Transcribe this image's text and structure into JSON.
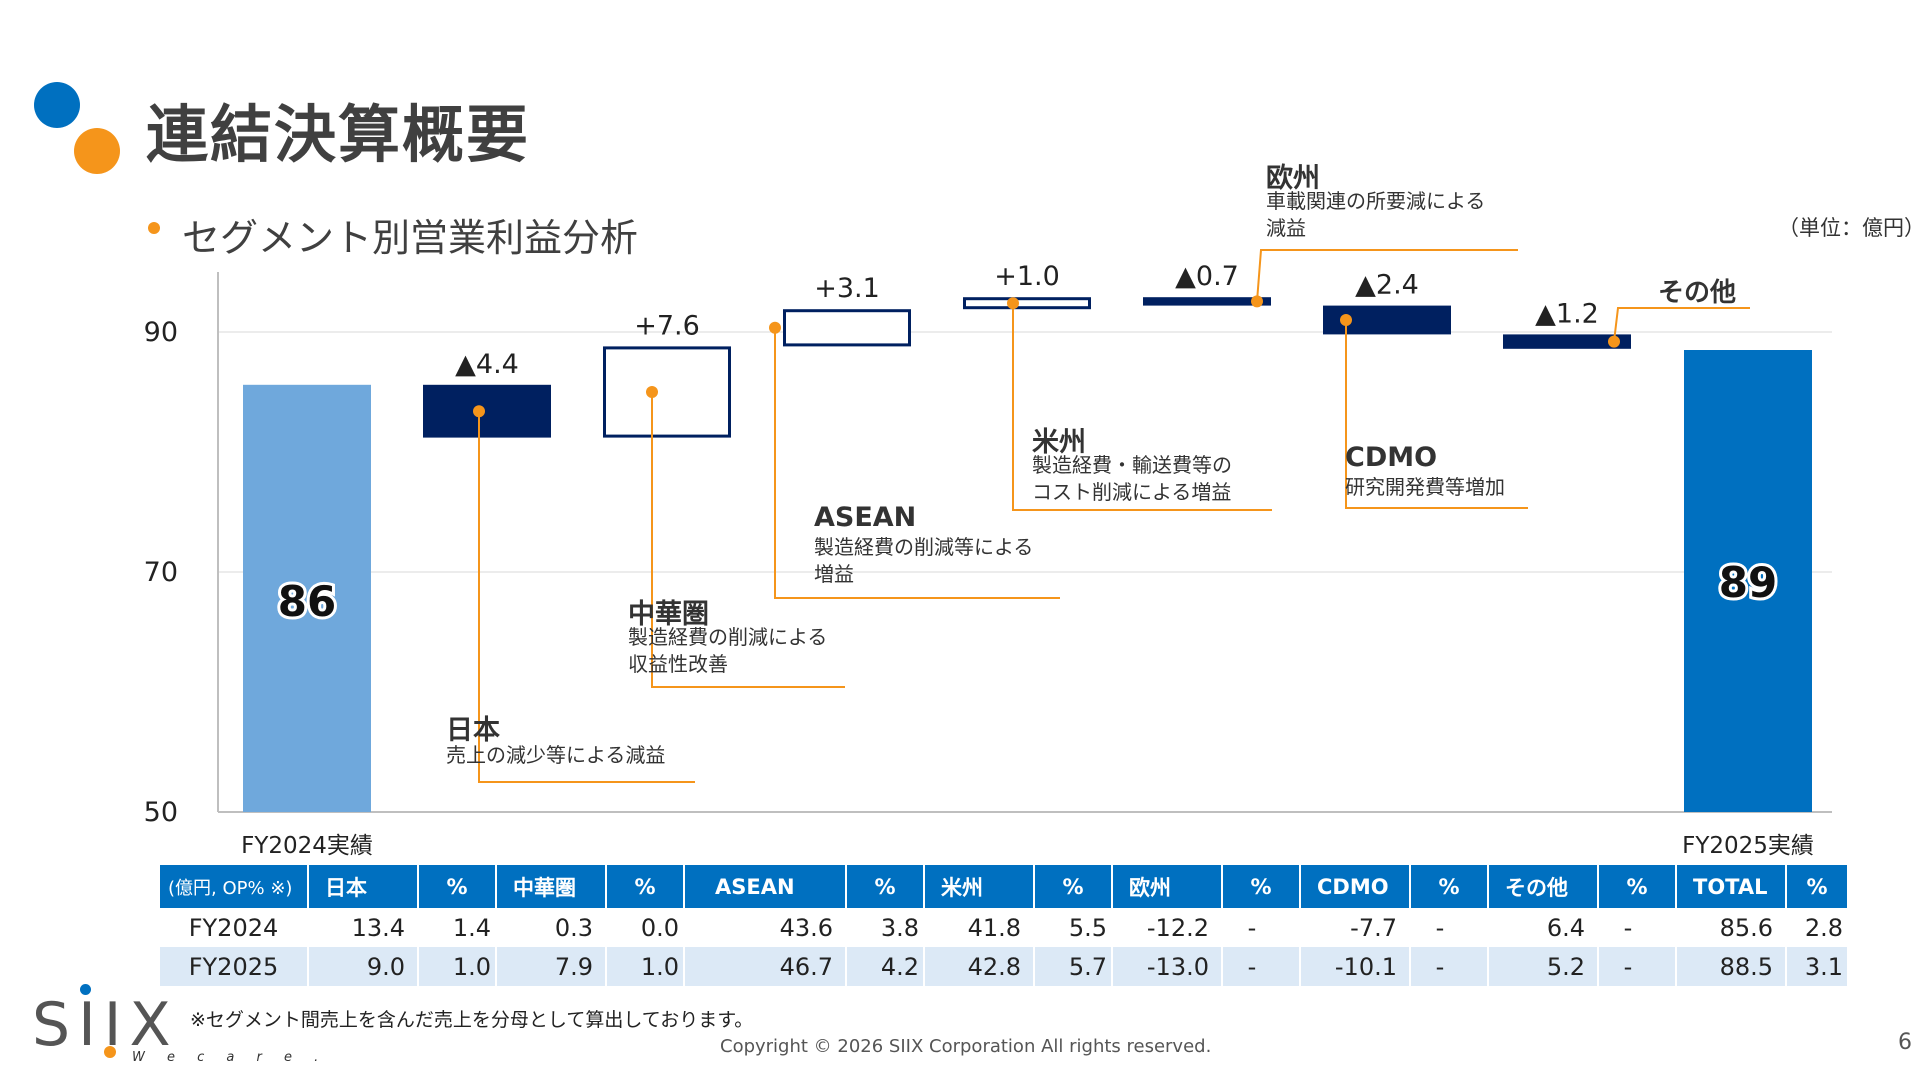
{
  "title": "連結決算概要",
  "subtitle": "セグメント別営業利益分析",
  "unit_label": "（単位：億円）",
  "colors": {
    "brand_blue": "#0070c0",
    "brand_orange": "#f5951b",
    "navy": "#002060",
    "start_bar": "#6fa8dc",
    "end_bar": "#0070c0"
  },
  "chart_data": {
    "type": "waterfall",
    "ylim": [
      50,
      95
    ],
    "yticks": [
      "50",
      "70",
      "90"
    ],
    "start": {
      "label": "FY2024実績",
      "value": 85.6,
      "display": "86"
    },
    "end": {
      "label": "FY2025実績",
      "value": 88.5,
      "display": "89"
    },
    "steps": [
      {
        "segment": "日本",
        "delta": -4.4,
        "label": "▲4.4",
        "note": "売上の減少等による減益"
      },
      {
        "segment": "中華圏",
        "delta": 7.6,
        "label": "+7.6",
        "note": "製造経費の削減による\n収益性改善"
      },
      {
        "segment": "ASEAN",
        "delta": 3.1,
        "label": "+3.1",
        "note": "製造経費の削減等による\n増益"
      },
      {
        "segment": "米州",
        "delta": 1.0,
        "label": "+1.0",
        "note": "製造経費・輸送費等の\nコスト削減による増益"
      },
      {
        "segment": "欧州",
        "delta": -0.7,
        "label": "▲0.7",
        "note": "車載関連の所要減による\n減益"
      },
      {
        "segment": "CDMO",
        "delta": -2.4,
        "label": "▲2.4",
        "note": "研究開発費等増加"
      },
      {
        "segment": "その他",
        "delta": -1.2,
        "label": "▲1.2",
        "note": ""
      }
    ]
  },
  "table": {
    "corner": "(億円, OP% ※)",
    "groups": [
      "日本",
      "中華圏",
      "ASEAN",
      "米州",
      "欧州",
      "CDMO",
      "その他",
      "TOTAL"
    ],
    "pct_header": "%",
    "rows": [
      {
        "label": "FY2024",
        "cells": [
          "13.4",
          "1.4",
          "0.3",
          "0.0",
          "43.6",
          "3.8",
          "41.8",
          "5.5",
          "-12.2",
          "-",
          "-7.7",
          "-",
          "6.4",
          "-",
          "85.6",
          "2.8"
        ]
      },
      {
        "label": "FY2025",
        "cells": [
          "9.0",
          "1.0",
          "7.9",
          "1.0",
          "46.7",
          "4.2",
          "42.8",
          "5.7",
          "-13.0",
          "-",
          "-10.1",
          "-",
          "5.2",
          "-",
          "88.5",
          "3.1"
        ]
      }
    ]
  },
  "footnote": "※セグメント間売上を含んだ売上を分母として算出しております。",
  "copyright": "Copyright © 2026 SIIX Corporation All rights reserved.",
  "page_number": "6",
  "logo": {
    "text": "SIIX",
    "tagline": "W e  c a r e ."
  }
}
